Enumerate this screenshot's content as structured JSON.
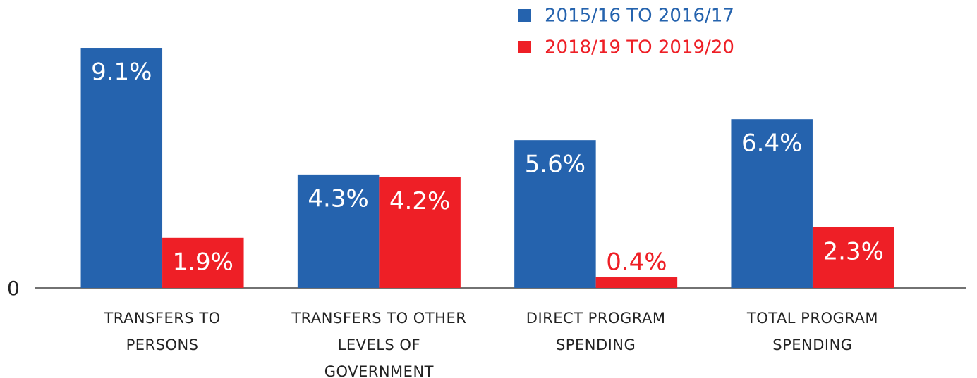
{
  "chart_data": {
    "type": "bar",
    "categories": [
      "TRANSFERS TO PERSONS",
      "TRANSFERS TO OTHER LEVELS OF GOVERNMENT",
      "DIRECT PROGRAM SPENDING",
      "TOTAL PROGRAM SPENDING"
    ],
    "series": [
      {
        "name": "2015/16 TO 2016/17",
        "color": "#2563ae",
        "values": [
          9.1,
          4.3,
          5.6,
          6.4
        ],
        "value_labels": [
          "9.1%",
          "4.3%",
          "5.6%",
          "6.4%"
        ]
      },
      {
        "name": "2018/19 TO 2019/20",
        "color": "#ee1f26",
        "values": [
          1.9,
          4.2,
          0.4,
          2.3
        ],
        "value_labels": [
          "1.9%",
          "4.2%",
          "0.4%",
          "2.3%"
        ]
      }
    ],
    "ylim": [
      0,
      10
    ],
    "yticks": [
      0
    ],
    "legend": "top"
  }
}
